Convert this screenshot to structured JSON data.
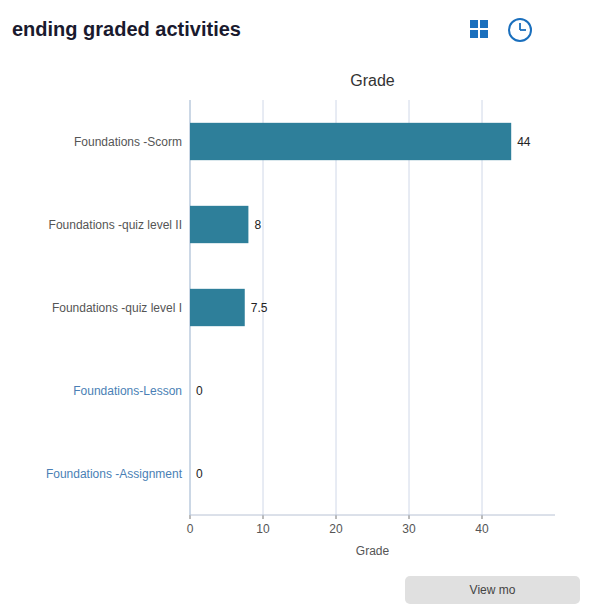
{
  "chart_data": {
    "type": "bar",
    "orientation": "horizontal",
    "title": "Grade",
    "xlabel": "Grade",
    "annotations": [
      "ending graded activities",
      "View mo"
    ],
    "categories": [
      "Foundations -Assignment",
      "Foundations-Lesson",
      "Foundations -quiz level I",
      "Foundations -quiz level II",
      "Foundations -Scorm"
    ],
    "values": [
      0,
      0,
      7.5,
      8,
      44
    ],
    "color": "#2e7f9a",
    "xlim": [
      0,
      50
    ],
    "xticks": [
      0,
      10,
      20,
      30,
      40
    ],
    "grid": true,
    "data_labels": true
  }
}
